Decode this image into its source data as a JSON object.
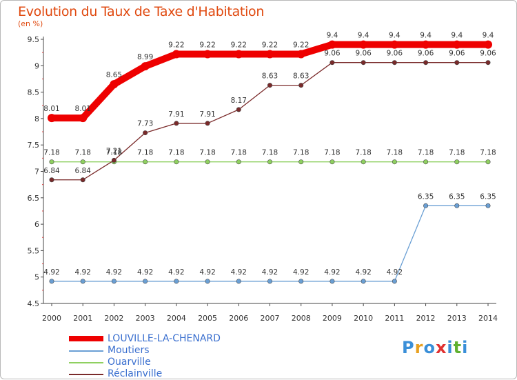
{
  "header": {
    "title": "Evolution du Taux de Taxe d'Habitation",
    "subtitle": "(en %)"
  },
  "logo": {
    "text": "Proxiti",
    "letters": [
      "P",
      "r",
      "o",
      "x",
      "i",
      "t",
      "i"
    ],
    "letter_colors": [
      "#3a8fd8",
      "#e8a020",
      "#3a8fd8",
      "#e03030",
      "#3a8fd8",
      "#60b030",
      "#3a8fd8"
    ]
  },
  "chart_data": {
    "type": "line",
    "title": "Evolution du Taux de Taxe d'Habitation",
    "ylabel": "(en %)",
    "xlabel": "",
    "ylim": [
      4.5,
      9.5
    ],
    "yticks": [
      "4.5",
      "5",
      "5.5",
      "6",
      "6.5",
      "7",
      "7.5",
      "8",
      "8.5",
      "9",
      "9.5"
    ],
    "ytick_values": [
      4.5,
      5,
      5.5,
      6,
      6.5,
      7,
      7.5,
      8,
      8.5,
      9,
      9.5
    ],
    "x": [
      "2000",
      "2001",
      "2002",
      "2003",
      "2004",
      "2005",
      "2006",
      "2007",
      "2008",
      "2009",
      "2010",
      "2011",
      "2012",
      "2013",
      "2014"
    ],
    "legend_position": "bottom-left",
    "grid": false,
    "series": [
      {
        "name": "LOUVILLE-LA-CHENARD",
        "color": "#ee0000",
        "values": [
          8.01,
          8.01,
          8.65,
          8.99,
          9.22,
          9.22,
          9.22,
          9.22,
          9.22,
          9.4,
          9.4,
          9.4,
          9.4,
          9.4,
          9.4
        ],
        "labels": [
          "8.01",
          "8.01",
          "8.65",
          "8.99",
          "9.22",
          "9.22",
          "9.22",
          "9.22",
          "9.22",
          "9.4",
          "9.4",
          "9.4",
          "9.4",
          "9.4",
          "9.4"
        ]
      },
      {
        "name": "Moutiers",
        "color": "#6a9fd4",
        "values": [
          4.92,
          4.92,
          4.92,
          4.92,
          4.92,
          4.92,
          4.92,
          4.92,
          4.92,
          4.92,
          4.92,
          4.92,
          6.35,
          6.35,
          6.35
        ],
        "labels": [
          "4.92",
          "4.92",
          "4.92",
          "4.92",
          "4.92",
          "4.92",
          "4.92",
          "4.92",
          "4.92",
          "4.92",
          "4.92",
          "4.92",
          "6.35",
          "6.35",
          "6.35"
        ]
      },
      {
        "name": "Ouarville",
        "color": "#8fd060",
        "values": [
          7.18,
          7.18,
          7.18,
          7.18,
          7.18,
          7.18,
          7.18,
          7.18,
          7.18,
          7.18,
          7.18,
          7.18,
          7.18,
          7.18,
          7.18
        ],
        "labels": [
          "7.18",
          "7.18",
          "7.18",
          "7.18",
          "7.18",
          "7.18",
          "7.18",
          "7.18",
          "7.18",
          "7.18",
          "7.18",
          "7.18",
          "7.18",
          "7.18",
          "7.18"
        ]
      },
      {
        "name": "Réclainville",
        "color": "#7a2a2a",
        "values": [
          6.84,
          6.84,
          7.21,
          7.73,
          7.91,
          7.91,
          8.17,
          8.63,
          8.63,
          9.06,
          9.06,
          9.06,
          9.06,
          9.06,
          9.06
        ],
        "labels": [
          "6.84",
          "6.84",
          "7.21",
          "7.73",
          "7.91",
          "7.91",
          "8.17",
          "8.63",
          "8.63",
          "9.06",
          "9.06",
          "9.06",
          "9.06",
          "9.06",
          "9.06"
        ]
      }
    ]
  }
}
